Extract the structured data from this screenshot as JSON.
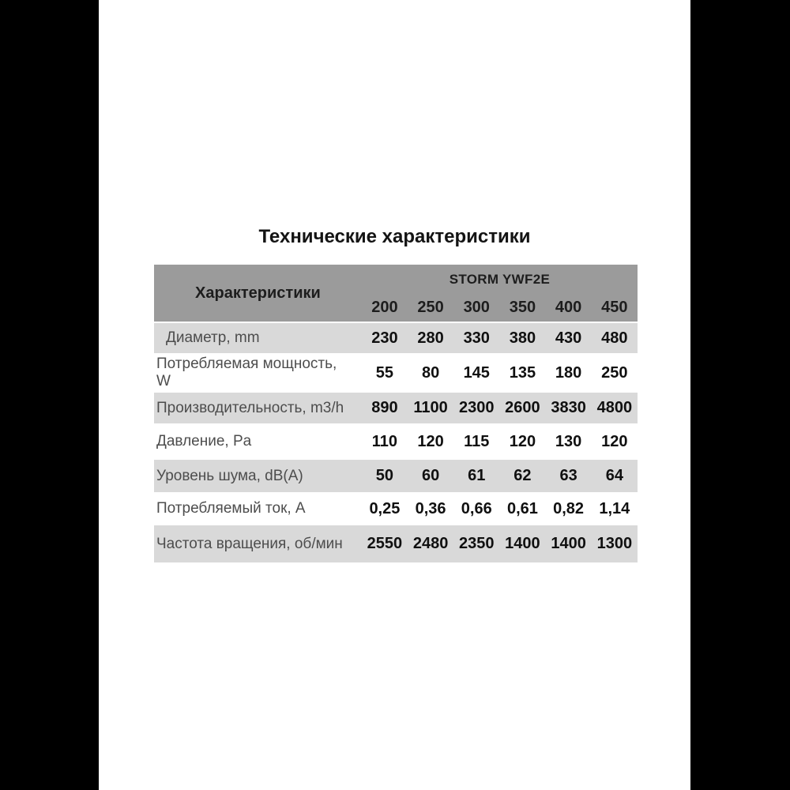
{
  "title": "Технические характеристики",
  "table": {
    "header": {
      "characteristics_label": "Характеристики",
      "group_label": "STORM YWF2E",
      "models": [
        "200",
        "250",
        "300",
        "350",
        "400",
        "450"
      ]
    },
    "rows": [
      {
        "label": "Диаметр, mm",
        "values": [
          "230",
          "280",
          "330",
          "380",
          "430",
          "480"
        ]
      },
      {
        "label": "Потребляемая мощность,",
        "label2": "W",
        "values": [
          "55",
          "80",
          "145",
          "135",
          "180",
          "250"
        ]
      },
      {
        "label": "Производительность, m3/h",
        "values": [
          "890",
          "1100",
          "2300",
          "2600",
          "3830",
          "4800"
        ]
      },
      {
        "label": "Давление, Pa",
        "values": [
          "110",
          "120",
          "115",
          "120",
          "130",
          "120"
        ]
      },
      {
        "label": "Уровень шума, dB(A)",
        "values": [
          "50",
          "60",
          "61",
          "62",
          "63",
          "64"
        ]
      },
      {
        "label": "Потребляемый ток, A",
        "values": [
          "0,25",
          "0,36",
          "0,66",
          "0,61",
          "0,82",
          "1,14"
        ]
      },
      {
        "label": "Частота вращения, об/мин",
        "values": [
          "2550",
          "2480",
          "2350",
          "1400",
          "1400",
          "1300"
        ]
      }
    ],
    "colors": {
      "header_bg": "#9b9b9b",
      "alt_row_bg": "#d9d9d9",
      "row_bg": "#ffffff",
      "label_text": "#4d4d4d",
      "value_text": "#101010",
      "pillar_bars": "#000000"
    }
  }
}
